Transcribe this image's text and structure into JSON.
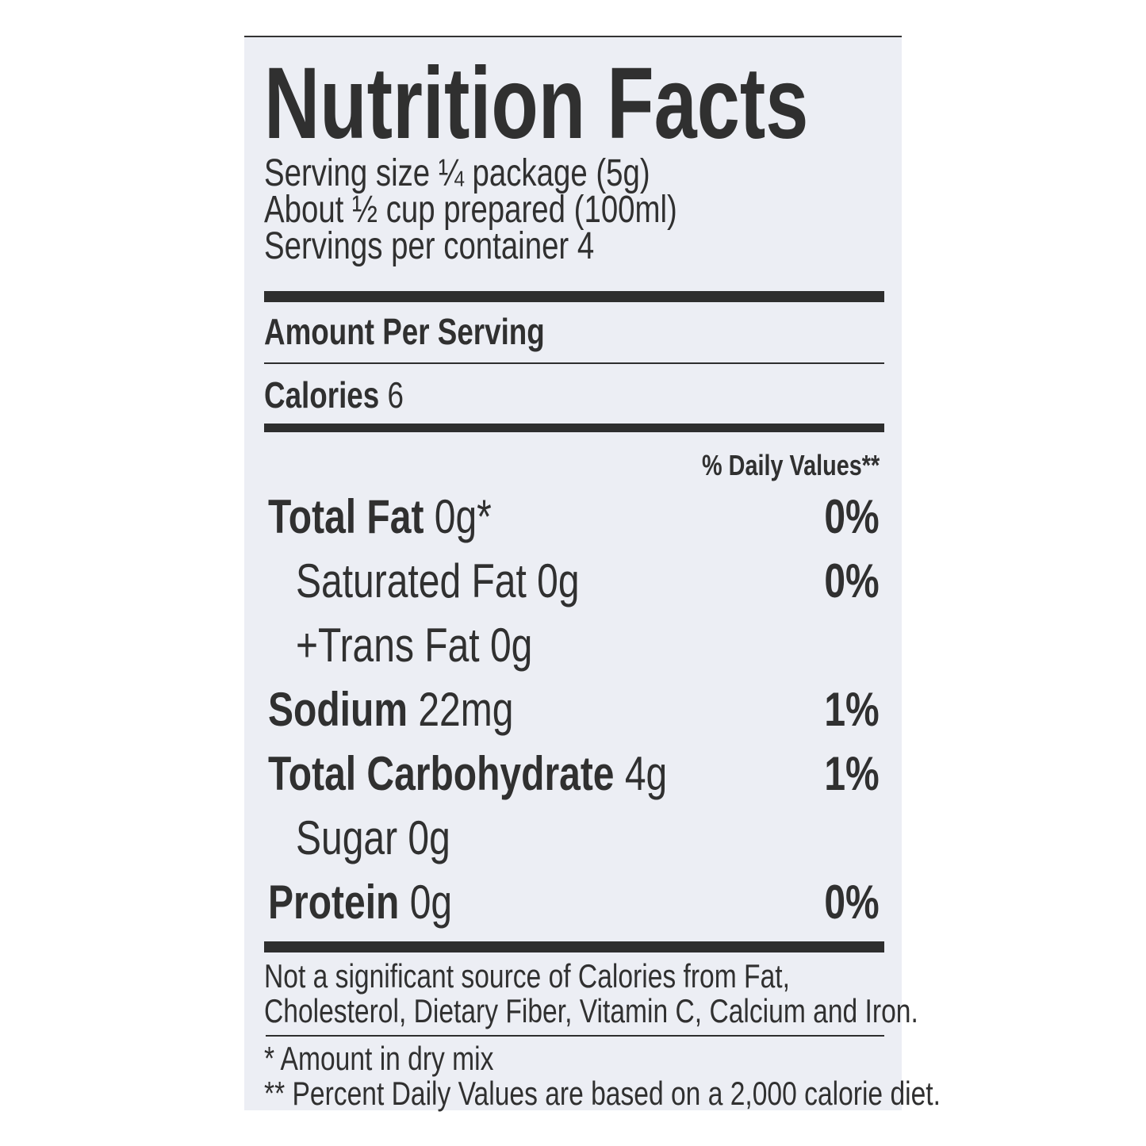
{
  "title": "Nutrition Facts",
  "serving": {
    "size": "Serving size ¼ package (5g)",
    "prepared": "About ½ cup prepared (100ml)",
    "per_container": "Servings per container 4"
  },
  "amount_per_serving": "Amount Per Serving",
  "calories": {
    "label": "Calories",
    "value": "6"
  },
  "daily_values_header": "% Daily Values**",
  "nutrients": [
    {
      "label": "Total Fat",
      "amount": "0g*",
      "dv": "0%",
      "bold": true
    },
    {
      "label": "Saturated Fat",
      "amount": "0g",
      "dv": "0%",
      "bold": false
    },
    {
      "label": "+Trans Fat",
      "amount": "0g",
      "dv": "",
      "bold": false
    },
    {
      "label": "Sodium",
      "amount": "22mg",
      "dv": "1%",
      "bold": true
    },
    {
      "label": "Total Carbohydrate",
      "amount": "4g",
      "dv": "1%",
      "bold": true
    },
    {
      "label": "Sugar",
      "amount": "0g",
      "dv": "",
      "bold": false
    },
    {
      "label": "Protein",
      "amount": "0g",
      "dv": "0%",
      "bold": true
    }
  ],
  "not_significant": [
    "Not a significant source of Calories from Fat,",
    "Cholesterol, Dietary Fiber, Vitamin C, Calcium and Iron."
  ],
  "footnotes": [
    "* Amount in dry mix",
    "** Percent Daily Values are based on a 2,000 calorie diet."
  ],
  "colors": {
    "background": "#eceef4",
    "text": "#303030"
  }
}
